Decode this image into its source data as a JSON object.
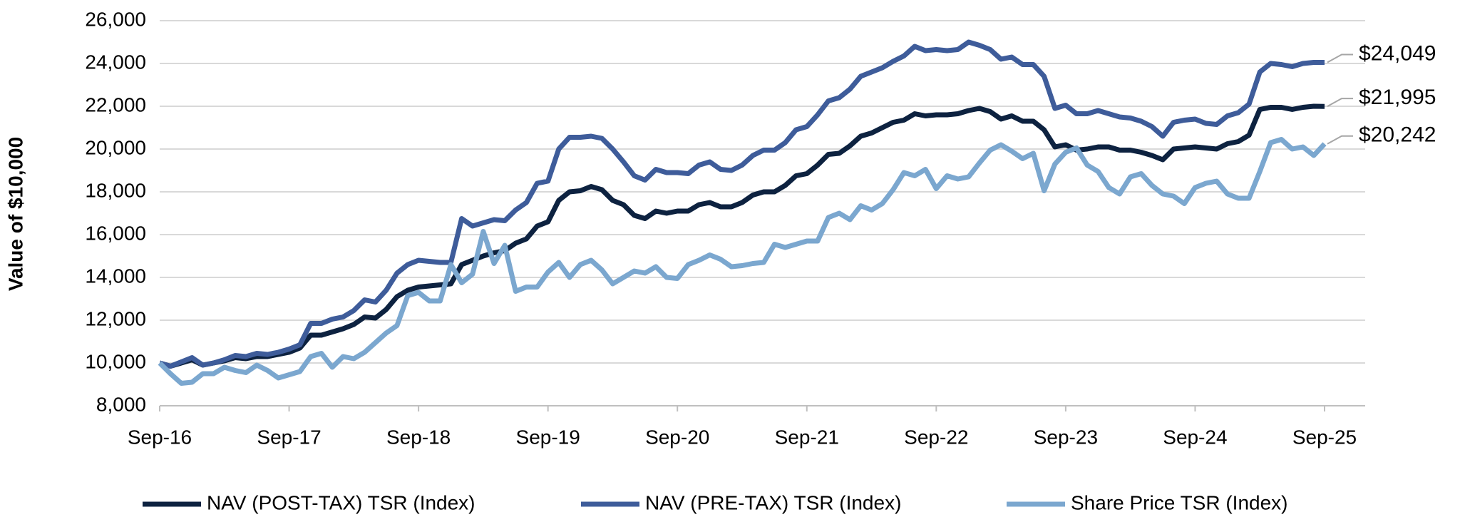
{
  "chart_data": {
    "type": "line",
    "y_label": "Value of $10,000",
    "categories": [
      "Sep-16",
      null,
      null,
      null,
      null,
      null,
      null,
      null,
      null,
      null,
      null,
      null,
      "Sep-17",
      null,
      null,
      null,
      null,
      null,
      null,
      null,
      null,
      null,
      null,
      null,
      "Sep-18",
      null,
      null,
      null,
      null,
      null,
      null,
      null,
      null,
      null,
      null,
      null,
      "Sep-19",
      null,
      null,
      null,
      null,
      null,
      null,
      null,
      null,
      null,
      null,
      null,
      "Sep-20",
      null,
      null,
      null,
      null,
      null,
      null,
      null,
      null,
      null,
      null,
      null,
      "Sep-21",
      null,
      null,
      null,
      null,
      null,
      null,
      null,
      null,
      null,
      null,
      null,
      "Sep-22",
      null,
      null,
      null,
      null,
      null,
      null,
      null,
      null,
      null,
      null,
      null,
      "Sep-23",
      null,
      null,
      null,
      null,
      null,
      null,
      null,
      null,
      null,
      null,
      null,
      "Sep-24",
      null,
      null,
      null,
      null,
      null,
      null,
      null,
      null,
      null,
      null,
      null,
      "Sep-25"
    ],
    "series": [
      {
        "name": "NAV (POST-TAX) TSR (Index)",
        "color": "#0d2240",
        "values": [
          10000,
          9850,
          10000,
          10150,
          9900,
          10000,
          10100,
          10250,
          10200,
          10300,
          10300,
          10400,
          10500,
          10700,
          11300,
          11300,
          11450,
          11600,
          11800,
          12150,
          12100,
          12500,
          13100,
          13400,
          13550,
          13600,
          13650,
          13700,
          14600,
          14800,
          15000,
          15150,
          15250,
          15600,
          15800,
          16400,
          16600,
          17600,
          18000,
          18050,
          18250,
          18100,
          17600,
          17400,
          16900,
          16750,
          17100,
          17000,
          17100,
          17100,
          17400,
          17500,
          17300,
          17300,
          17500,
          17850,
          18000,
          18000,
          18300,
          18750,
          18850,
          19250,
          19750,
          19800,
          20150,
          20600,
          20750,
          21000,
          21250,
          21350,
          21650,
          21550,
          21600,
          21600,
          21650,
          21800,
          21900,
          21750,
          21400,
          21550,
          21300,
          21300,
          20900,
          20100,
          20200,
          19950,
          20000,
          20100,
          20100,
          19950,
          19950,
          19850,
          19700,
          19500,
          20000,
          20050,
          20100,
          20050,
          20000,
          20250,
          20350,
          20650,
          21850,
          21950,
          21950,
          21850,
          21950,
          22000,
          21995
        ],
        "value_labels": [
          null,
          null,
          null,
          null,
          null,
          null,
          null,
          null,
          null,
          null,
          null,
          null,
          null,
          null,
          null,
          null,
          null,
          null,
          null,
          null,
          null,
          null,
          null,
          null,
          null,
          null,
          null,
          null,
          null,
          null,
          null,
          null,
          null,
          null,
          null,
          null,
          null,
          null,
          null,
          null,
          null,
          null,
          null,
          null,
          null,
          null,
          null,
          null,
          null,
          null,
          null,
          null,
          null,
          null,
          null,
          null,
          null,
          null,
          null,
          null,
          null,
          null,
          null,
          null,
          null,
          null,
          null,
          null,
          null,
          null,
          null,
          null,
          null,
          null,
          null,
          null,
          null,
          null,
          null,
          null,
          null,
          null,
          null,
          null,
          null,
          null,
          null,
          null,
          null,
          null,
          null,
          null,
          null,
          null,
          null,
          null,
          null,
          null,
          null,
          null,
          null,
          null,
          null,
          null,
          null,
          null,
          null,
          null,
          "$21,995"
        ]
      },
      {
        "name": "NAV (PRE-TAX) TSR (Index)",
        "color": "#3e5c9a",
        "values": [
          10000,
          9850,
          10050,
          10250,
          9900,
          10000,
          10150,
          10350,
          10300,
          10450,
          10400,
          10500,
          10650,
          10850,
          11850,
          11850,
          12050,
          12150,
          12450,
          12950,
          12850,
          13400,
          14200,
          14600,
          14800,
          14750,
          14700,
          14700,
          16750,
          16400,
          16550,
          16700,
          16650,
          17150,
          17500,
          18400,
          18500,
          20000,
          20550,
          20550,
          20600,
          20500,
          20000,
          19400,
          18750,
          18550,
          19050,
          18900,
          18900,
          18850,
          19250,
          19400,
          19050,
          19000,
          19250,
          19700,
          19950,
          19950,
          20300,
          20900,
          21050,
          21600,
          22250,
          22400,
          22800,
          23400,
          23600,
          23800,
          24100,
          24350,
          24800,
          24600,
          24650,
          24600,
          24650,
          25000,
          24850,
          24650,
          24200,
          24300,
          23950,
          23950,
          23400,
          21900,
          22050,
          21650,
          21650,
          21800,
          21650,
          21500,
          21450,
          21300,
          21050,
          20600,
          21250,
          21350,
          21400,
          21200,
          21150,
          21550,
          21700,
          22100,
          23600,
          24000,
          23950,
          23850,
          24000,
          24050,
          24049
        ],
        "value_labels": [
          null,
          null,
          null,
          null,
          null,
          null,
          null,
          null,
          null,
          null,
          null,
          null,
          null,
          null,
          null,
          null,
          null,
          null,
          null,
          null,
          null,
          null,
          null,
          null,
          null,
          null,
          null,
          null,
          null,
          null,
          null,
          null,
          null,
          null,
          null,
          null,
          null,
          null,
          null,
          null,
          null,
          null,
          null,
          null,
          null,
          null,
          null,
          null,
          null,
          null,
          null,
          null,
          null,
          null,
          null,
          null,
          null,
          null,
          null,
          null,
          null,
          null,
          null,
          null,
          null,
          null,
          null,
          null,
          null,
          null,
          null,
          null,
          null,
          null,
          null,
          null,
          null,
          null,
          null,
          null,
          null,
          null,
          null,
          null,
          null,
          null,
          null,
          null,
          null,
          null,
          null,
          null,
          null,
          null,
          null,
          null,
          null,
          null,
          null,
          null,
          null,
          null,
          null,
          null,
          null,
          null,
          null,
          null,
          "$24,049"
        ]
      },
      {
        "name": "Share Price TSR (Index)",
        "color": "#7ba7cf",
        "values": [
          10000,
          9500,
          9050,
          9100,
          9500,
          9500,
          9800,
          9650,
          9550,
          9900,
          9650,
          9300,
          9450,
          9600,
          10300,
          10450,
          9800,
          10300,
          10200,
          10500,
          10950,
          11400,
          11750,
          13150,
          13300,
          12900,
          12900,
          14600,
          13750,
          14150,
          16150,
          14650,
          15500,
          13350,
          13550,
          13550,
          14250,
          14700,
          14000,
          14600,
          14800,
          14350,
          13700,
          14000,
          14300,
          14200,
          14500,
          14000,
          13950,
          14600,
          14800,
          15050,
          14850,
          14500,
          14550,
          14650,
          14700,
          15550,
          15400,
          15550,
          15700,
          15700,
          16800,
          17000,
          16700,
          17350,
          17150,
          17450,
          18100,
          18900,
          18750,
          19050,
          18150,
          18750,
          18600,
          18700,
          19350,
          19950,
          20200,
          19900,
          19550,
          19800,
          18050,
          19300,
          19850,
          20050,
          19250,
          18950,
          18200,
          17900,
          18700,
          18850,
          18300,
          17900,
          17800,
          17450,
          18200,
          18400,
          18500,
          17900,
          17700,
          17700,
          18950,
          20300,
          20450,
          20000,
          20100,
          19700,
          20242
        ],
        "value_labels": [
          null,
          null,
          null,
          null,
          null,
          null,
          null,
          null,
          null,
          null,
          null,
          null,
          null,
          null,
          null,
          null,
          null,
          null,
          null,
          null,
          null,
          null,
          null,
          null,
          null,
          null,
          null,
          null,
          null,
          null,
          null,
          null,
          null,
          null,
          null,
          null,
          null,
          null,
          null,
          null,
          null,
          null,
          null,
          null,
          null,
          null,
          null,
          null,
          null,
          null,
          null,
          null,
          null,
          null,
          null,
          null,
          null,
          null,
          null,
          null,
          null,
          null,
          null,
          null,
          null,
          null,
          null,
          null,
          null,
          null,
          null,
          null,
          null,
          null,
          null,
          null,
          null,
          null,
          null,
          null,
          null,
          null,
          null,
          null,
          null,
          null,
          null,
          null,
          null,
          null,
          null,
          null,
          null,
          null,
          null,
          null,
          null,
          null,
          null,
          null,
          null,
          null,
          null,
          null,
          null,
          null,
          null,
          null,
          "$20,242"
        ]
      }
    ],
    "ylim": [
      8000,
      26000
    ],
    "yticks": [
      {
        "value": 8000,
        "label": "8,000"
      },
      {
        "value": 10000,
        "label": "10,000"
      },
      {
        "value": 12000,
        "label": "12,000"
      },
      {
        "value": 14000,
        "label": "14,000"
      },
      {
        "value": 16000,
        "label": "16,000"
      },
      {
        "value": 18000,
        "label": "18,000"
      },
      {
        "value": 20000,
        "label": "20,000"
      },
      {
        "value": 22000,
        "label": "22,000"
      },
      {
        "value": 24000,
        "label": "24,000"
      },
      {
        "value": 26000,
        "label": "26,000"
      }
    ],
    "grid": true,
    "legend": "bottom"
  }
}
